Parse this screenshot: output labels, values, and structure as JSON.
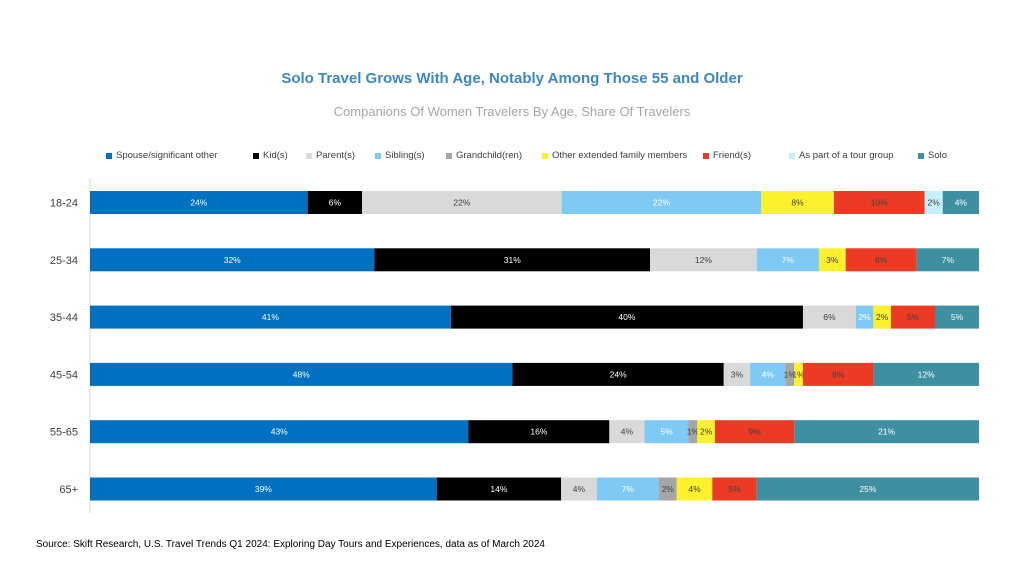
{
  "chart_data": {
    "type": "bar",
    "orientation": "horizontal",
    "stacked": true,
    "title": "Solo Travel Grows With Age, Notably Among Those 55 and Older",
    "subtitle": "Companions Of Women Travelers By Age, Share Of Travelers",
    "source": "Source: Skift Research, U.S. Travel Trends Q1 2024: Exploring Day Tours and Experiences, data as of March 2024",
    "legend_position": "top",
    "categories": [
      "18-24",
      "25-34",
      "35-44",
      "45-54",
      "55-65",
      "65+"
    ],
    "series": [
      {
        "name": "Spouse/significant other",
        "color": "#0070c0",
        "label_color": "#ffffff",
        "values": [
          24,
          32,
          41,
          48,
          43,
          39
        ],
        "labels": [
          "24%",
          "32%",
          "41%",
          "48%",
          "43%",
          "39%"
        ]
      },
      {
        "name": "Kid(s)",
        "color": "#000000",
        "label_color": "#ffffff",
        "values": [
          6,
          31,
          40,
          24,
          16,
          14
        ],
        "labels": [
          "6%",
          "31%",
          "40%",
          "24%",
          "16%",
          "14%"
        ]
      },
      {
        "name": "Parent(s)",
        "color": "#d9d9d9",
        "label_color": "#404040",
        "values": [
          22,
          12,
          6,
          3,
          4,
          4
        ],
        "labels": [
          "22%",
          "12%",
          "6%",
          "3%",
          "4%",
          "4%"
        ]
      },
      {
        "name": "Sibling(s)",
        "color": "#7fcaf5",
        "label_color": "#ffffff",
        "values": [
          22,
          7,
          2,
          4,
          5,
          7
        ],
        "labels": [
          "22%",
          "7%",
          "2%",
          "4%",
          "5%",
          "7%"
        ]
      },
      {
        "name": "Grandchild(ren)",
        "color": "#a6a6a6",
        "label_color": "#404040",
        "values": [
          0,
          0,
          0,
          1,
          1,
          2
        ],
        "labels": [
          "",
          "",
          "",
          "1%",
          "1%",
          "2%"
        ]
      },
      {
        "name": "Other extended family members",
        "color": "#fdf12e",
        "label_color": "#404040",
        "values": [
          8,
          3,
          2,
          1,
          2,
          4
        ],
        "labels": [
          "8%",
          "3%",
          "2%",
          "1%",
          "2%",
          "4%"
        ]
      },
      {
        "name": "Friend(s)",
        "color": "#ec3a24",
        "label_color": "#404040",
        "values": [
          10,
          8,
          5,
          8,
          9,
          5
        ],
        "labels": [
          "10%",
          "8%",
          "5%",
          "8%",
          "9%",
          "5%"
        ]
      },
      {
        "name": "As part of a tour group",
        "color": "#c6f0fb",
        "label_color": "#404040",
        "values": [
          2,
          0,
          0,
          0,
          0,
          0
        ],
        "labels": [
          "2%",
          "",
          "",
          "",
          "",
          ""
        ]
      },
      {
        "name": "Solo",
        "color": "#3e8fa1",
        "label_color": "#ffffff",
        "values": [
          4,
          7,
          5,
          12,
          21,
          25
        ],
        "labels": [
          "4%",
          "7%",
          "5%",
          "12%",
          "21%",
          "25%"
        ]
      }
    ]
  }
}
